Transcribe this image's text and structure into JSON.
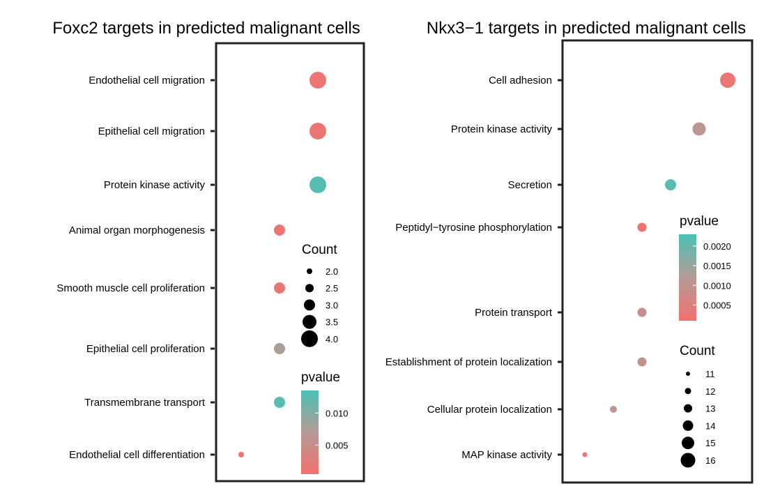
{
  "chart_data": [
    {
      "type": "scatter",
      "title": "Foxc2 targets in predicted malignant cells",
      "categories": [
        "Endothelial cell migration",
        "Epithelial cell migration",
        "Protein kinase activity",
        "Animal organ morphogenesis",
        "Smooth muscle cell proliferation",
        "Epithelial cell proliferation",
        "Transmembrane transport",
        "Endothelial cell differentiation"
      ],
      "points": [
        {
          "term": "Endothelial cell migration",
          "count": 4.0,
          "pvalue": 0.001
        },
        {
          "term": "Epithelial cell migration",
          "count": 4.0,
          "pvalue": 0.0012
        },
        {
          "term": "Protein kinase activity",
          "count": 4.0,
          "pvalue": 0.0128
        },
        {
          "term": "Animal organ morphogenesis",
          "count": 3.0,
          "pvalue": 0.001
        },
        {
          "term": "Smooth muscle cell proliferation",
          "count": 3.0,
          "pvalue": 0.0012
        },
        {
          "term": "Epithelial cell proliferation",
          "count": 3.0,
          "pvalue": 0.0075
        },
        {
          "term": "Transmembrane transport",
          "count": 3.0,
          "pvalue": 0.0128
        },
        {
          "term": "Endothelial cell differentiation",
          "count": 2.0,
          "pvalue": 0.0008
        }
      ],
      "legend_count": {
        "title": "Count",
        "values": [
          2.0,
          2.5,
          3.0,
          3.5,
          4.0
        ],
        "labels": [
          "2.0",
          "2.5",
          "3.0",
          "3.5",
          "4.0"
        ]
      },
      "legend_pvalue": {
        "title": "pvalue",
        "range": [
          0.0005,
          0.0135
        ],
        "ticks": [
          0.01,
          0.005
        ],
        "tick_labels": [
          "0.010",
          "0.005"
        ]
      },
      "colors": {
        "low": "#f2716f",
        "high": "#4cc0b5"
      }
    },
    {
      "type": "scatter",
      "title": "Nkx3−1 targets in predicted malignant cells",
      "categories": [
        "Cell adhesion",
        "Protein kinase activity",
        "Secretion",
        "Peptidyl−tyrosine phosphorylation",
        "Protein transport",
        "Establishment of protein localization",
        "Cellular protein localization",
        "MAP kinase activity"
      ],
      "points": [
        {
          "term": "Cell adhesion",
          "count": 15,
          "pvalue": 0.00025
        },
        {
          "term": "Protein kinase activity",
          "count": 14,
          "pvalue": 0.0011
        },
        {
          "term": "Secretion",
          "count": 13,
          "pvalue": 0.0022
        },
        {
          "term": "Peptidyl−tyrosine phosphorylation",
          "count": 12,
          "pvalue": 0.00015
        },
        {
          "term": "Protein transport",
          "count": 12,
          "pvalue": 0.0009
        },
        {
          "term": "Establishment of protein localization",
          "count": 12,
          "pvalue": 0.001
        },
        {
          "term": "Cellular protein localization",
          "count": 11,
          "pvalue": 0.0011
        },
        {
          "term": "MAP kinase activity",
          "count": 10,
          "pvalue": 0.0002
        }
      ],
      "legend_count": {
        "title": "Count",
        "values": [
          11,
          12,
          13,
          14,
          15,
          16
        ],
        "labels": [
          "11",
          "12",
          "13",
          "14",
          "15",
          "16"
        ]
      },
      "legend_pvalue": {
        "title": "pvalue",
        "range": [
          0.0001,
          0.0023
        ],
        "ticks": [
          0.002,
          0.0015,
          0.001,
          0.0005
        ],
        "tick_labels": [
          "0.0020",
          "0.0015",
          "0.0010",
          "0.0005"
        ]
      },
      "colors": {
        "low": "#f2716f",
        "high": "#4cc0b5"
      }
    }
  ]
}
